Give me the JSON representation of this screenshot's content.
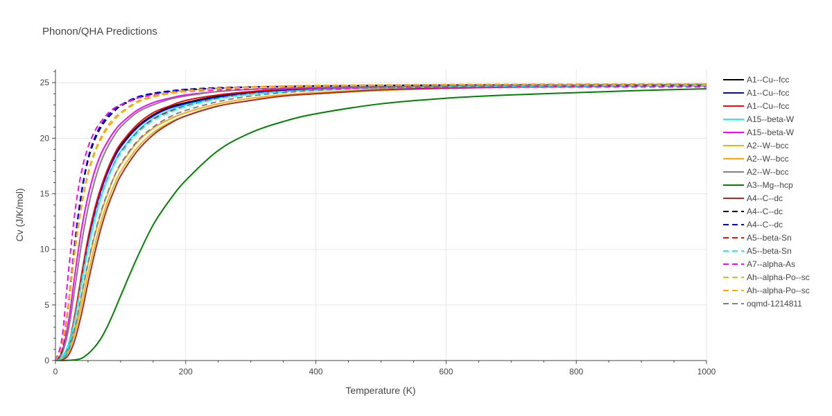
{
  "chart_data": {
    "type": "line",
    "title": "Phonon/QHA Predictions",
    "xlabel": "Temperature (K)",
    "ylabel": "Cv (J/K/mol)",
    "xlim": [
      0,
      1000
    ],
    "ylim": [
      0,
      26.2
    ],
    "xticks": [
      0,
      200,
      400,
      600,
      800,
      1000
    ],
    "yticks": [
      0,
      5,
      10,
      15,
      20,
      25
    ],
    "grid": true,
    "legend_position": "right",
    "x": [
      0,
      10,
      20,
      30,
      40,
      50,
      60,
      70,
      80,
      90,
      100,
      125,
      150,
      175,
      200,
      250,
      300,
      350,
      400,
      500,
      600,
      700,
      800,
      900,
      1000
    ],
    "series": [
      {
        "name": "A1--Cu--fcc",
        "color": "#000000",
        "dash": "solid",
        "values": [
          0,
          0.2,
          1.3,
          4.0,
          7.5,
          10.8,
          13.4,
          15.4,
          17.0,
          18.3,
          19.3,
          21.0,
          22.1,
          22.8,
          23.2,
          23.8,
          24.1,
          24.3,
          24.4,
          24.6,
          24.65,
          24.7,
          24.72,
          24.74,
          24.75
        ]
      },
      {
        "name": "A1--Cu--fcc",
        "color": "#0000ff",
        "dash": "solid",
        "values": [
          0,
          0.2,
          1.2,
          3.9,
          7.4,
          10.7,
          13.3,
          15.3,
          16.9,
          18.2,
          19.2,
          20.9,
          22.0,
          22.7,
          23.1,
          23.7,
          24.05,
          24.25,
          24.38,
          24.55,
          24.62,
          24.67,
          24.7,
          24.72,
          24.73
        ]
      },
      {
        "name": "A1--Cu--fcc",
        "color": "#ff0000",
        "dash": "solid",
        "values": [
          0,
          0.25,
          1.4,
          4.2,
          7.7,
          11.0,
          13.6,
          15.6,
          17.2,
          18.5,
          19.5,
          21.2,
          22.3,
          22.9,
          23.4,
          23.9,
          24.2,
          24.4,
          24.5,
          24.65,
          24.72,
          24.77,
          24.8,
          24.82,
          24.83
        ]
      },
      {
        "name": "A15--beta-W",
        "color": "#00ffff",
        "dash": "solid",
        "values": [
          0,
          0.3,
          1.5,
          3.8,
          6.9,
          10.0,
          12.6,
          14.7,
          16.4,
          17.7,
          18.8,
          20.6,
          21.8,
          22.5,
          23.0,
          23.6,
          24.0,
          24.2,
          24.35,
          24.52,
          24.6,
          24.65,
          24.68,
          24.7,
          24.72
        ]
      },
      {
        "name": "A15--beta-W",
        "color": "#ff00ff",
        "dash": "solid",
        "values": [
          0,
          0.8,
          3.5,
          7.8,
          11.8,
          14.8,
          17.0,
          18.6,
          19.7,
          20.6,
          21.3,
          22.5,
          23.2,
          23.6,
          23.9,
          24.2,
          24.4,
          24.5,
          24.55,
          24.62,
          24.66,
          24.69,
          24.7,
          24.71,
          24.72
        ]
      },
      {
        "name": "A2--W--bcc",
        "color": "#e6b422",
        "dash": "solid",
        "values": [
          0,
          0.1,
          0.8,
          2.5,
          5.0,
          7.8,
          10.3,
          12.5,
          14.3,
          15.8,
          17.0,
          19.1,
          20.5,
          21.4,
          22.0,
          22.9,
          23.4,
          23.8,
          24.0,
          24.3,
          24.5,
          24.6,
          24.65,
          24.7,
          24.72
        ]
      },
      {
        "name": "A2--W--bcc",
        "color": "#ffa500",
        "dash": "solid",
        "values": [
          0,
          0.15,
          1.0,
          3.0,
          5.8,
          8.7,
          11.2,
          13.3,
          15.0,
          16.5,
          17.6,
          19.6,
          20.9,
          21.7,
          22.3,
          23.1,
          23.6,
          23.9,
          24.1,
          24.4,
          24.55,
          24.65,
          24.7,
          24.74,
          24.76
        ]
      },
      {
        "name": "A2--W--bcc",
        "color": "#808080",
        "dash": "solid",
        "values": [
          0,
          0.6,
          2.8,
          6.6,
          10.5,
          13.7,
          16.1,
          17.9,
          19.2,
          20.2,
          21.0,
          22.3,
          23.0,
          23.5,
          23.8,
          24.2,
          24.4,
          24.5,
          24.58,
          24.66,
          24.7,
          24.73,
          24.75,
          24.76,
          24.77
        ]
      },
      {
        "name": "A3--Mg--hcp",
        "color": "#008000",
        "dash": "solid",
        "values": [
          0,
          0.0,
          0.02,
          0.06,
          0.2,
          0.6,
          1.2,
          2.0,
          3.1,
          4.4,
          5.8,
          9.2,
          12.2,
          14.4,
          16.2,
          18.9,
          20.5,
          21.5,
          22.2,
          23.1,
          23.6,
          23.9,
          24.1,
          24.3,
          24.45
        ]
      },
      {
        "name": "A4--C--dc",
        "color": "#a52a2a",
        "dash": "solid",
        "values": [
          0,
          0.05,
          0.5,
          1.9,
          4.2,
          7.0,
          9.6,
          11.9,
          13.8,
          15.3,
          16.6,
          18.8,
          20.3,
          21.3,
          22.0,
          22.9,
          23.4,
          23.8,
          24.0,
          24.35,
          24.5,
          24.6,
          24.65,
          24.7,
          24.72
        ]
      },
      {
        "name": "A4--C--dc",
        "color": "#000000",
        "dash": "dash",
        "values": [
          0,
          1.0,
          5.0,
          10.5,
          15.0,
          18.0,
          19.8,
          21.0,
          21.8,
          22.4,
          22.9,
          23.6,
          24.0,
          24.2,
          24.35,
          24.5,
          24.6,
          24.65,
          24.7,
          24.75,
          24.78,
          24.8,
          24.8,
          24.81,
          24.81
        ]
      },
      {
        "name": "A4--C--dc",
        "color": "#0000ff",
        "dash": "dash",
        "values": [
          0,
          1.1,
          5.2,
          10.8,
          15.2,
          18.2,
          20.0,
          21.2,
          22.0,
          22.6,
          23.0,
          23.7,
          24.05,
          24.25,
          24.4,
          24.55,
          24.62,
          24.67,
          24.7,
          24.75,
          24.78,
          24.8,
          24.8,
          24.81,
          24.81
        ]
      },
      {
        "name": "A5--beta-Sn",
        "color": "#ff0000",
        "dash": "dash",
        "values": [
          0,
          0.2,
          1.3,
          3.9,
          7.2,
          10.3,
          12.8,
          14.8,
          16.4,
          17.7,
          18.7,
          20.5,
          21.7,
          22.4,
          22.9,
          23.6,
          24.0,
          24.2,
          24.35,
          24.55,
          24.65,
          24.7,
          24.73,
          24.75,
          24.76
        ]
      },
      {
        "name": "A5--beta-Sn",
        "color": "#00ffff",
        "dash": "dash",
        "values": [
          0,
          0.2,
          1.3,
          3.8,
          7.1,
          10.2,
          12.7,
          14.7,
          16.3,
          17.6,
          18.6,
          20.4,
          21.6,
          22.3,
          22.85,
          23.55,
          23.95,
          24.2,
          24.33,
          24.53,
          24.63,
          24.68,
          24.71,
          24.73,
          24.74
        ]
      },
      {
        "name": "A7--alpha-As",
        "color": "#ff00ff",
        "dash": "dash",
        "values": [
          0,
          2.0,
          8.0,
          13.4,
          17.0,
          19.2,
          20.6,
          21.5,
          22.2,
          22.7,
          23.0,
          23.6,
          23.9,
          24.1,
          24.2,
          24.35,
          24.42,
          24.47,
          24.5,
          24.55,
          24.58,
          24.6,
          24.61,
          24.62,
          24.62
        ]
      },
      {
        "name": "Ah--alpha-Po--sc",
        "color": "#e6b422",
        "dash": "dash",
        "values": [
          0,
          1.2,
          5.0,
          9.8,
          13.8,
          16.7,
          18.6,
          19.9,
          20.9,
          21.6,
          22.2,
          23.2,
          23.7,
          24.0,
          24.2,
          24.45,
          24.58,
          24.65,
          24.7,
          24.76,
          24.8,
          24.82,
          24.83,
          24.84,
          24.84
        ]
      },
      {
        "name": "Ah--alpha-Po--sc",
        "color": "#ffa500",
        "dash": "dash",
        "values": [
          0,
          1.3,
          5.3,
          10.2,
          14.1,
          16.9,
          18.8,
          20.1,
          21.1,
          21.8,
          22.3,
          23.3,
          23.8,
          24.1,
          24.3,
          24.5,
          24.62,
          24.7,
          24.75,
          24.8,
          24.84,
          24.86,
          24.87,
          24.88,
          24.88
        ]
      },
      {
        "name": "oqmd-1214811",
        "color": "#808080",
        "dash": "dash",
        "values": [
          0,
          0.1,
          0.9,
          3.0,
          5.9,
          8.8,
          11.3,
          13.4,
          15.1,
          16.5,
          17.7,
          19.7,
          21.0,
          21.9,
          22.5,
          23.3,
          23.8,
          24.1,
          24.3,
          24.55,
          24.68,
          24.75,
          24.8,
          24.83,
          24.85
        ]
      }
    ]
  }
}
